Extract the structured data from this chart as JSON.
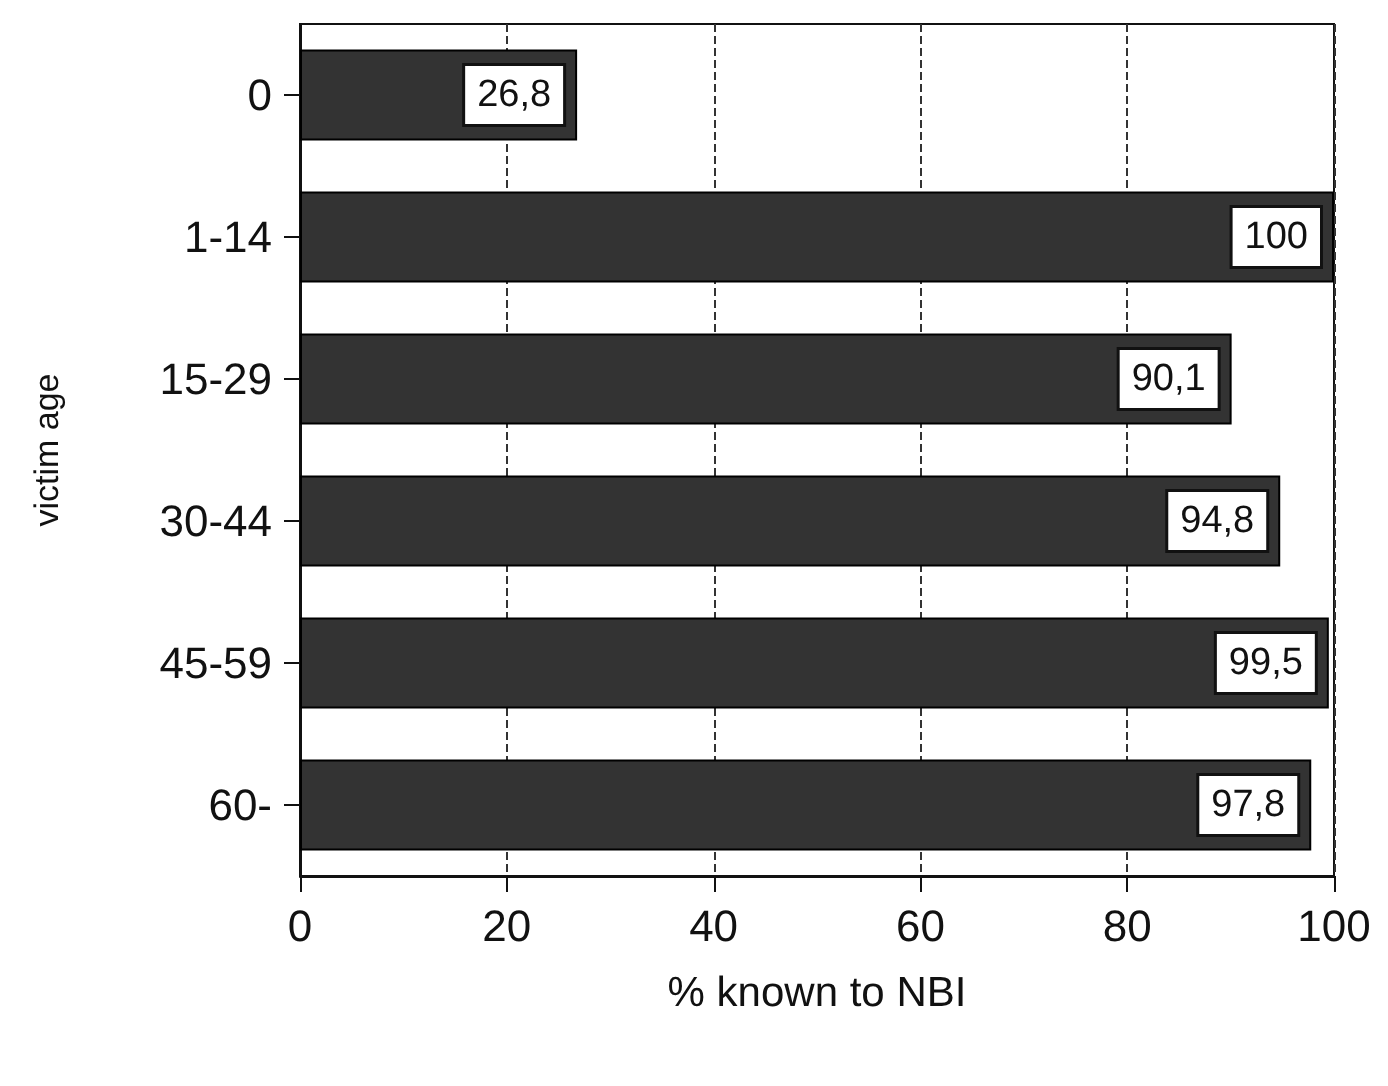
{
  "chart_data": {
    "type": "bar",
    "orientation": "horizontal",
    "categories": [
      "0",
      "1-14",
      "15-29",
      "30-44",
      "45-59",
      "60-"
    ],
    "values": [
      26.8,
      100,
      90.1,
      94.8,
      99.5,
      97.8
    ],
    "value_labels": [
      "26,8",
      "100",
      "90,1",
      "94,8",
      "99,5",
      "97,8"
    ],
    "color": "#333333",
    "xlabel": "% known to NBI",
    "ylabel": "victim age",
    "xlim": [
      0,
      100
    ],
    "xticks": [
      0,
      20,
      40,
      60,
      80,
      100
    ],
    "grid": "x"
  }
}
